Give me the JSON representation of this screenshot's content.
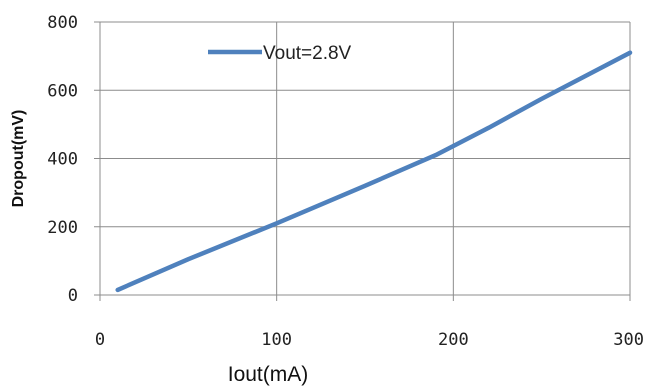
{
  "chart_data": {
    "type": "line",
    "title": "",
    "xlabel": "Iout(mA)",
    "ylabel": "Dropout(mV)",
    "xlim": [
      0,
      300
    ],
    "ylim": [
      0,
      800
    ],
    "x_ticks": [
      0,
      100,
      200,
      300
    ],
    "y_ticks": [
      0,
      200,
      400,
      600,
      800
    ],
    "x_tick_labels": [
      "0",
      "100",
      "200",
      "300"
    ],
    "y_tick_labels": [
      "0",
      "200",
      "400",
      "600",
      "800"
    ],
    "grid": "vertical-and-horizontal",
    "legend_placement": "top-left",
    "series": [
      {
        "name": "Vout=2.8V",
        "color": "#4f81bd",
        "x": [
          10,
          50,
          100,
          150,
          190,
          220,
          250,
          300
        ],
        "y": [
          15,
          105,
          210,
          320,
          410,
          490,
          575,
          710
        ]
      }
    ]
  }
}
